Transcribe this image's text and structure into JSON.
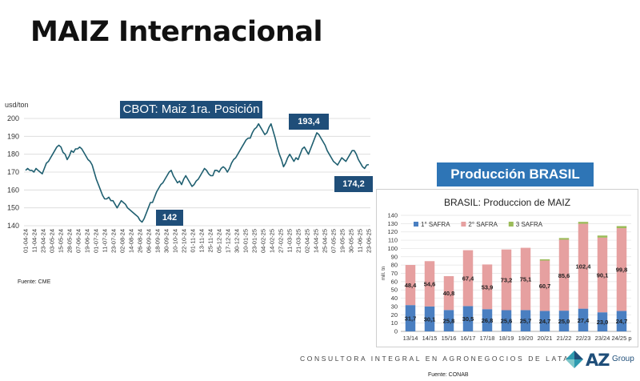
{
  "page": {
    "title": "MAIZ Internacional",
    "fuente_left": "Fuente: CME",
    "production_header": "Producción BRASIL",
    "footer": "CONSULTORA INTEGRAL EN AGRONEGOCIOS DE LATAM",
    "fuente_bottom": "Fuente: CONAB",
    "logo_text": "AZ",
    "logo_sub": "Group"
  },
  "chart_data": [
    {
      "type": "line",
      "title": "CBOT: Maiz 1ra. Posición",
      "ylabel": "usd/ton",
      "ylim": [
        140,
        200
      ],
      "yticks": [
        140,
        150,
        160,
        170,
        180,
        190,
        200
      ],
      "grid": true,
      "line_color": "#1f5f70",
      "x_ticks": [
        "01-04-24",
        "11-04-24",
        "23-04-24",
        "03-05-24",
        "15-05-24",
        "28-05-24",
        "07-06-24",
        "19-06-24",
        "01-07-24",
        "11-07-24",
        "23-07-24",
        "02-08-24",
        "14-08-24",
        "26-08-24",
        "06-09-24",
        "18-09-24",
        "30-09-24",
        "10-10-24",
        "22-10-24",
        "01-11-24",
        "13-11-24",
        "25-11-24",
        "05-12-24",
        "17-12-24",
        "30-12-24",
        "10-01-25",
        "23-01-25",
        "04-02-25",
        "14-02-25",
        "27-02-25",
        "11-03-25",
        "21-03-25",
        "02-04-25",
        "14-04-25",
        "25-04-25",
        "07-05-25",
        "19-05-25",
        "30-05-25",
        "11-06-25",
        "23-06-25"
      ],
      "annotations": [
        {
          "label": "193,4",
          "x": "27-02-25",
          "value": 193.4
        },
        {
          "label": "142",
          "x": "26-08-24",
          "value": 142
        },
        {
          "label": "174,2",
          "x": "23-06-25",
          "value": 174.2
        }
      ],
      "values": [
        171,
        172,
        171,
        171,
        170,
        172,
        171,
        170,
        169,
        172,
        175,
        176,
        178,
        180,
        182,
        184,
        185,
        184,
        181,
        180,
        177,
        179,
        182,
        181,
        183,
        183,
        184,
        183,
        181,
        179,
        177,
        176,
        174,
        170,
        166,
        163,
        160,
        157,
        155,
        155,
        156,
        154,
        154,
        152,
        150,
        152,
        154,
        153,
        152,
        150,
        149,
        148,
        147,
        146,
        145,
        143,
        142,
        144,
        147,
        150,
        153,
        153,
        156,
        159,
        161,
        163,
        164,
        166,
        168,
        170,
        171,
        168,
        166,
        164,
        165,
        163,
        166,
        168,
        166,
        164,
        162,
        163,
        165,
        166,
        168,
        170,
        172,
        171,
        169,
        168,
        168,
        171,
        171,
        170,
        172,
        173,
        172,
        170,
        172,
        175,
        177,
        178,
        180,
        182,
        184,
        186,
        188,
        189,
        189,
        192,
        194,
        195,
        197,
        195,
        193,
        191,
        192,
        195,
        197,
        193,
        189,
        184,
        180,
        177,
        173,
        175,
        178,
        180,
        178,
        176,
        178,
        177,
        180,
        183,
        184,
        182,
        180,
        183,
        186,
        189,
        192,
        191,
        189,
        187,
        185,
        182,
        180,
        178,
        176,
        175,
        174,
        176,
        178,
        177,
        176,
        178,
        180,
        182,
        182,
        180,
        177,
        175,
        173,
        172,
        174,
        174.2
      ]
    },
    {
      "type": "bar",
      "stacked": true,
      "title": "BRASIL: Produccion de MAIZ",
      "ylabel": "mill. tn",
      "ylim": [
        0,
        140
      ],
      "yticks": [
        0,
        10,
        20,
        30,
        40,
        50,
        60,
        70,
        80,
        90,
        100,
        110,
        120,
        130,
        140
      ],
      "legend_position": "top-left",
      "categories": [
        "13/14",
        "14/15",
        "15/16",
        "16/17",
        "17/18",
        "18/19",
        "19/20",
        "20/21",
        "21/22",
        "22/23",
        "23/24",
        "24/25 p"
      ],
      "series": [
        {
          "name": "1° SAFRA",
          "color": "#4a7fc1",
          "values": [
            31.7,
            30.1,
            25.8,
            30.5,
            26.8,
            25.6,
            25.7,
            24.7,
            25.0,
            27.4,
            23.0,
            24.7
          ],
          "labels": [
            "31,7",
            "30,1",
            "25,8",
            "30,5",
            "26,8",
            "25,6",
            "25,7",
            "24,7",
            "25,0",
            "27,4",
            "23,0",
            "24,7"
          ]
        },
        {
          "name": "2° SAFRA",
          "color": "#e6a0a0",
          "values": [
            48.4,
            54.6,
            40.8,
            67.4,
            53.9,
            73.2,
            75.1,
            60.7,
            85.6,
            102.4,
            90.1,
            99.8
          ],
          "labels": [
            "48,4",
            "54,6",
            "40,8",
            "67,4",
            "53,9",
            "73,2",
            "75,1",
            "60,7",
            "85,6",
            "102,4",
            "90,1",
            "99,8"
          ]
        },
        {
          "name": "3 SAFRA",
          "color": "#9bbb59",
          "values": [
            0.0,
            0.0,
            0.0,
            0.0,
            0.0,
            0.0,
            0.0,
            1.5,
            2.0,
            2.3,
            2.5,
            2.5
          ],
          "labels": []
        }
      ]
    }
  ]
}
